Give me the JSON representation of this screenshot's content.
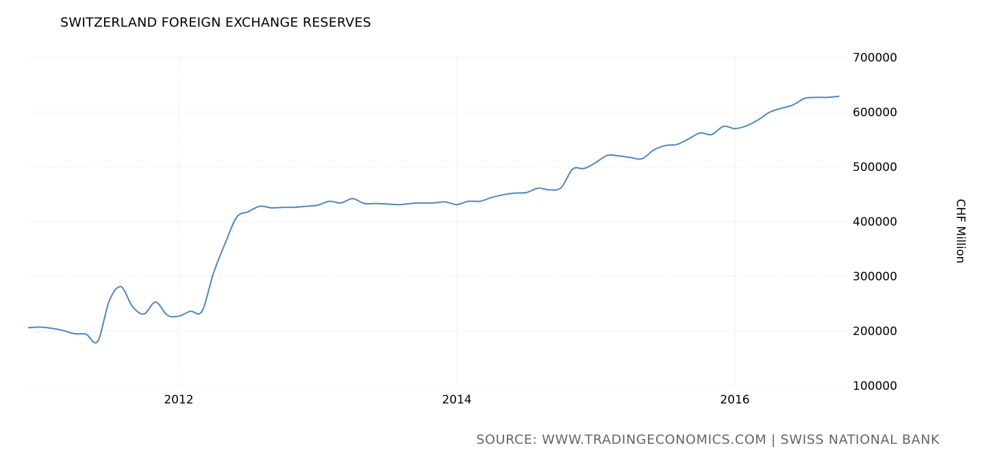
{
  "chart_data": {
    "type": "line",
    "title": "SWITZERLAND FOREIGN EXCHANGE RESERVES",
    "ylabel": "CHF Million",
    "xlabel": "",
    "source": "SOURCE: WWW.TRADINGECONOMICS.COM | SWISS NATIONAL BANK",
    "ylim": [
      100000,
      700000
    ],
    "yticks": [
      "100000",
      "200000",
      "300000",
      "400000",
      "500000",
      "600000",
      "700000"
    ],
    "xticks": [
      "2012",
      "2014",
      "2016"
    ],
    "xrange": [
      "2010-12",
      "2016-10"
    ],
    "grid": true,
    "line_color": "#4a86c0",
    "series": [
      {
        "x": [
          "2010-12",
          "2011-01",
          "2011-02",
          "2011-03",
          "2011-04",
          "2011-05",
          "2011-06",
          "2011-07",
          "2011-08",
          "2011-09",
          "2011-10",
          "2011-11",
          "2011-12",
          "2012-01",
          "2012-02",
          "2012-03",
          "2012-04",
          "2012-05",
          "2012-06",
          "2012-07",
          "2012-08",
          "2012-09",
          "2012-10",
          "2012-11",
          "2012-12",
          "2013-01",
          "2013-02",
          "2013-03",
          "2013-04",
          "2013-05",
          "2013-06",
          "2013-07",
          "2013-08",
          "2013-09",
          "2013-10",
          "2013-11",
          "2013-12",
          "2014-01",
          "2014-02",
          "2014-03",
          "2014-04",
          "2014-05",
          "2014-06",
          "2014-07",
          "2014-08",
          "2014-09",
          "2014-10",
          "2014-11",
          "2014-12",
          "2015-01",
          "2015-02",
          "2015-03",
          "2015-04",
          "2015-05",
          "2015-06",
          "2015-07",
          "2015-08",
          "2015-09",
          "2015-10",
          "2015-11",
          "2015-12",
          "2016-01",
          "2016-02",
          "2016-03",
          "2016-04",
          "2016-05",
          "2016-06",
          "2016-07",
          "2016-08",
          "2016-09",
          "2016-10"
        ],
        "y": [
          206000,
          207000,
          205000,
          201000,
          195000,
          194000,
          181000,
          255000,
          281000,
          245000,
          231000,
          253000,
          229000,
          227000,
          236000,
          236000,
          306000,
          360000,
          408000,
          418000,
          428000,
          425000,
          426000,
          426000,
          428000,
          430000,
          437000,
          434000,
          442000,
          433000,
          433000,
          432000,
          431000,
          433000,
          434000,
          434000,
          436000,
          431000,
          437000,
          437000,
          444000,
          449000,
          452000,
          453000,
          461000,
          458000,
          462000,
          496000,
          497000,
          508000,
          521000,
          520000,
          517000,
          515000,
          531000,
          539000,
          541000,
          551000,
          562000,
          559000,
          574000,
          570000,
          575000,
          586000,
          600000,
          607000,
          613000,
          625000,
          627000,
          627000,
          629000
        ]
      }
    ]
  }
}
